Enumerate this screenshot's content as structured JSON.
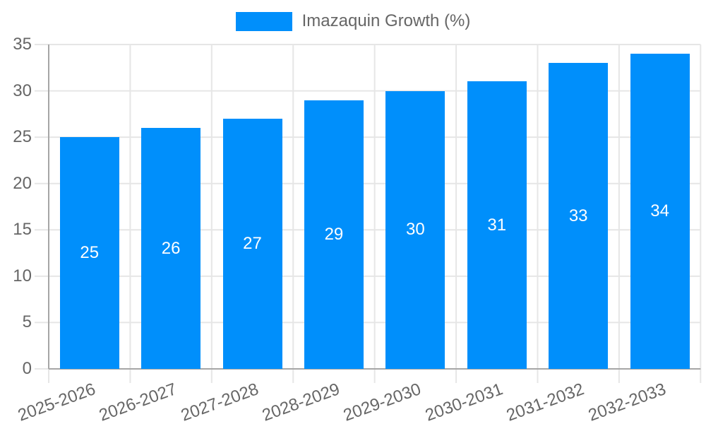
{
  "legend": {
    "label": "Imazaquin Growth (%)"
  },
  "colors": {
    "bar": "#008ffb",
    "axis_line": "#a6a6a6",
    "grid_line": "#e6e6e6",
    "tick_label": "#666666",
    "value_label": "#ffffff",
    "background": "#ffffff"
  },
  "chart_data": {
    "type": "bar",
    "title": "",
    "legend": "Imazaquin Growth (%)",
    "legend_position": "top",
    "categories": [
      "2025-2026",
      "2026-2027",
      "2027-2028",
      "2028-2029",
      "2029-2030",
      "2030-2031",
      "2031-2032",
      "2032-2033"
    ],
    "values": [
      25,
      26,
      27,
      29,
      30,
      31,
      33,
      34
    ],
    "bar_value_labels": [
      "25",
      "26",
      "27",
      "29",
      "30",
      "31",
      "33",
      "34"
    ],
    "xlabel": "",
    "ylabel": "",
    "ylim": [
      0,
      35
    ],
    "yticks": [
      0,
      5,
      10,
      15,
      20,
      25,
      30,
      35
    ],
    "grid": true,
    "value_labels_inside_bars": true,
    "x_label_rotation_deg": -20
  }
}
